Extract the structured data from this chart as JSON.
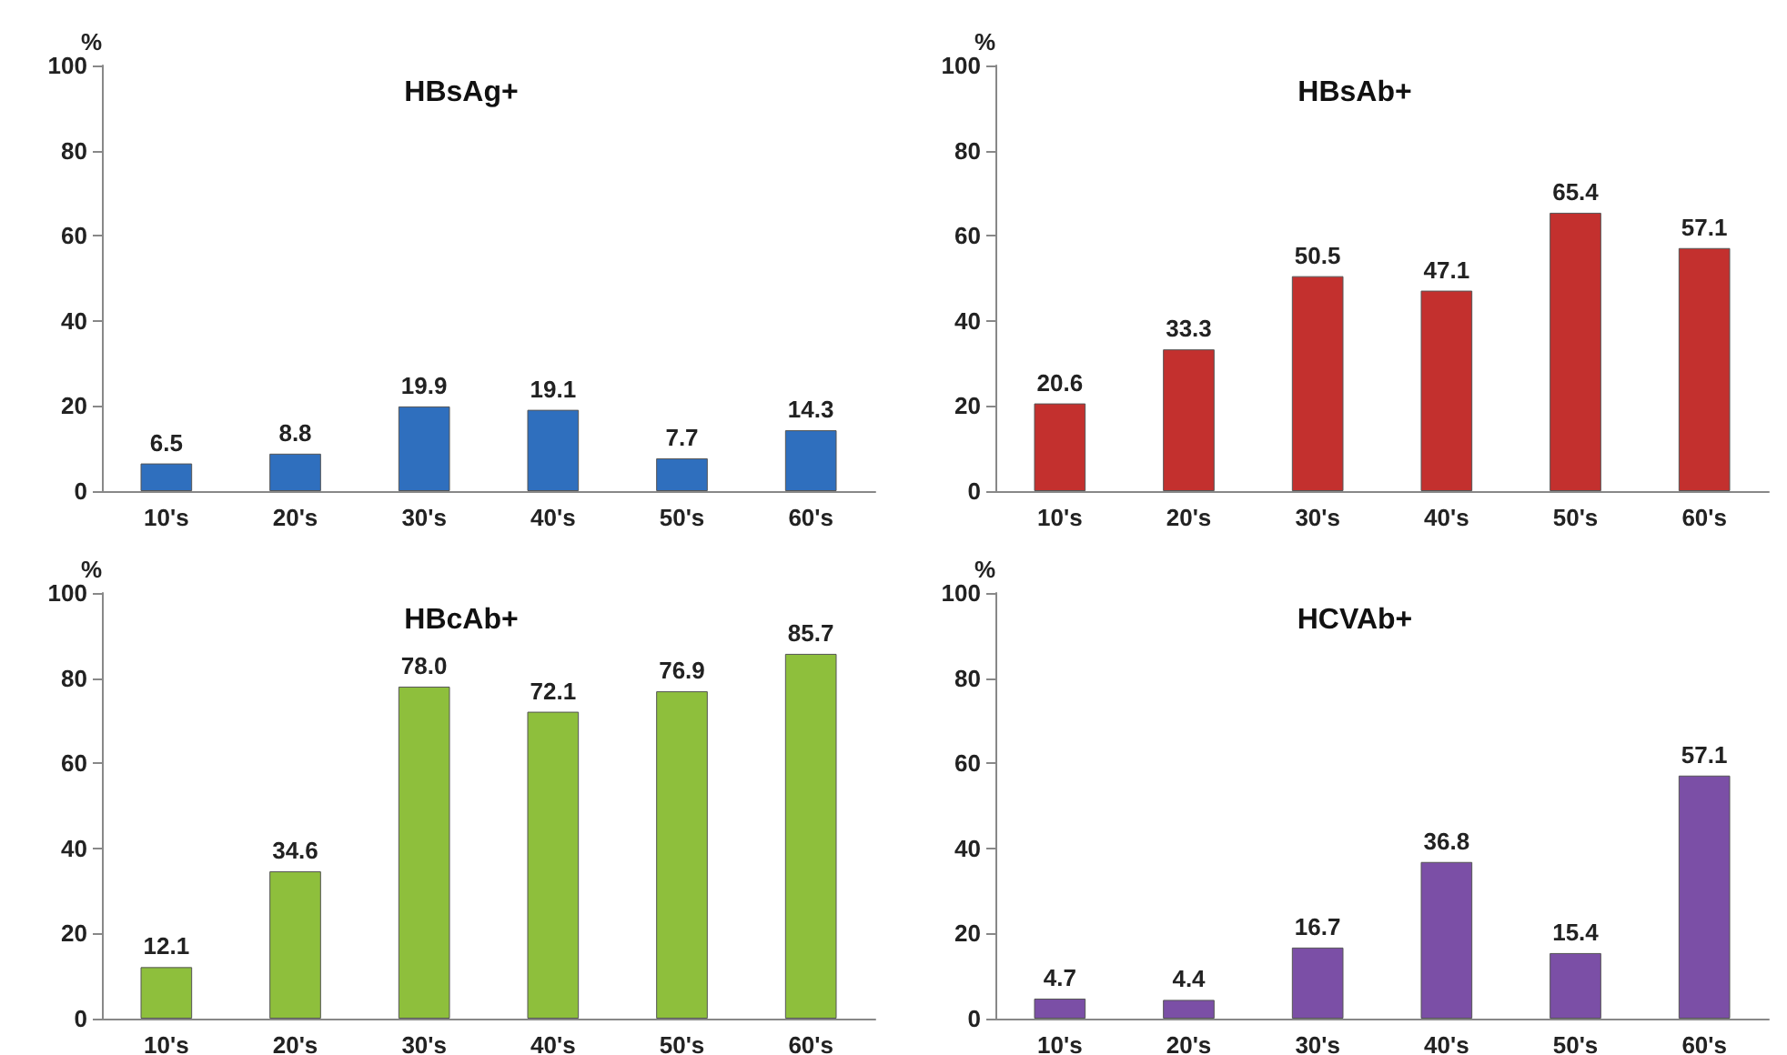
{
  "chart_data": [
    {
      "type": "bar",
      "title": "HBsAg+",
      "ylabel": "%",
      "categories": [
        "10's",
        "20's",
        "30's",
        "40's",
        "50's",
        "60's"
      ],
      "values": [
        6.5,
        8.8,
        19.9,
        19.1,
        7.7,
        14.3
      ],
      "color": "#2f6fbe",
      "ylim": [
        0,
        100
      ],
      "yticks": [
        0,
        20,
        40,
        60,
        80,
        100
      ],
      "data_labels": true,
      "grid": false
    },
    {
      "type": "bar",
      "title": "HBsAb+",
      "ylabel": "%",
      "categories": [
        "10's",
        "20's",
        "30's",
        "40's",
        "50's",
        "60's"
      ],
      "values": [
        20.6,
        33.3,
        50.5,
        47.1,
        65.4,
        57.1
      ],
      "color": "#c3302e",
      "ylim": [
        0,
        100
      ],
      "yticks": [
        0,
        20,
        40,
        60,
        80,
        100
      ],
      "data_labels": true,
      "grid": false
    },
    {
      "type": "bar",
      "title": "HBcAb+",
      "ylabel": "%",
      "categories": [
        "10's",
        "20's",
        "30's",
        "40's",
        "50's",
        "60's"
      ],
      "values": [
        12.1,
        34.6,
        78.0,
        72.1,
        76.9,
        85.7
      ],
      "value_labels": [
        "12.1",
        "34.6",
        "78.0",
        "72.1",
        "76.9",
        "85.7"
      ],
      "color": "#8ebf3c",
      "ylim": [
        0,
        100
      ],
      "yticks": [
        0,
        20,
        40,
        60,
        80,
        100
      ],
      "data_labels": true,
      "grid": false
    },
    {
      "type": "bar",
      "title": "HCVAb+",
      "ylabel": "%",
      "categories": [
        "10's",
        "20's",
        "30's",
        "40's",
        "50's",
        "60's"
      ],
      "values": [
        4.7,
        4.4,
        16.7,
        36.8,
        15.4,
        57.1
      ],
      "color": "#7b4fa6",
      "ylim": [
        0,
        100
      ],
      "yticks": [
        0,
        20,
        40,
        60,
        80,
        100
      ],
      "data_labels": true,
      "grid": false
    }
  ]
}
